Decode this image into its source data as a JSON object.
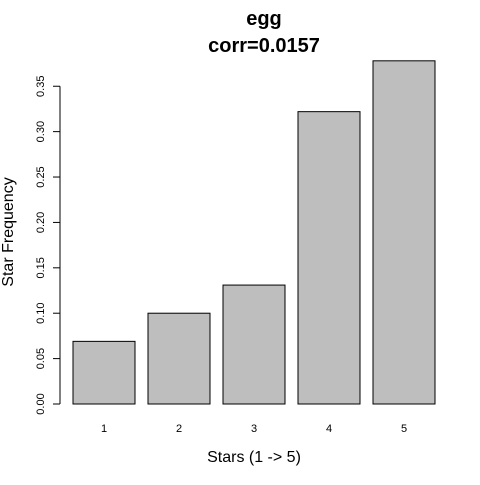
{
  "chart_data": {
    "type": "bar",
    "title": "egg",
    "subtitle": "corr=0.0157",
    "xlabel": "Stars (1 -> 5)",
    "ylabel": "Star Frequency",
    "categories": [
      "1",
      "2",
      "3",
      "4",
      "5"
    ],
    "values": [
      0.069,
      0.1,
      0.131,
      0.322,
      0.378
    ],
    "ylim": [
      0,
      0.38
    ],
    "yticks": [
      "0.00",
      "0.05",
      "0.10",
      "0.15",
      "0.20",
      "0.25",
      "0.30",
      "0.35"
    ],
    "grid": false,
    "legend": "none",
    "bar_fill": "#bebebe",
    "bar_stroke": "#000000"
  }
}
